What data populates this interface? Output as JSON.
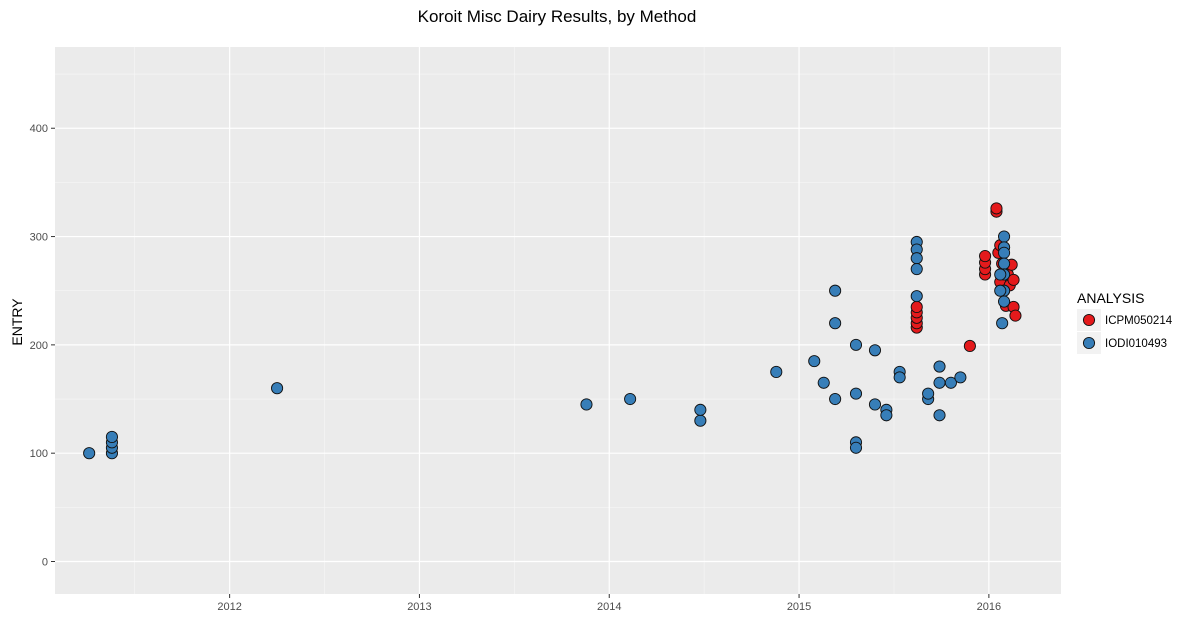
{
  "chart_data": {
    "type": "scatter",
    "title": "Koroit Misc Dairy Results, by Method",
    "xlabel": "",
    "ylabel": "ENTRY",
    "xlim": [
      2011.08,
      2016.38
    ],
    "ylim": [
      -30,
      475
    ],
    "x_ticks": [
      {
        "label": "2012",
        "value": 2012.0
      },
      {
        "label": "2013",
        "value": 2013.0
      },
      {
        "label": "2014",
        "value": 2014.0
      },
      {
        "label": "2015",
        "value": 2015.0
      },
      {
        "label": "2016",
        "value": 2016.0
      }
    ],
    "y_ticks": [
      {
        "label": "0",
        "value": 0
      },
      {
        "label": "100",
        "value": 100
      },
      {
        "label": "200",
        "value": 200
      },
      {
        "label": "300",
        "value": 300
      },
      {
        "label": "400",
        "value": 400
      }
    ],
    "grid": true,
    "legend_title": "ANALYSIS",
    "legend_position": "right",
    "series": [
      {
        "name": "ICPM050214",
        "color": "#e41a1c",
        "points": [
          {
            "x": 2015.62,
            "y": 216
          },
          {
            "x": 2015.62,
            "y": 220
          },
          {
            "x": 2015.62,
            "y": 225
          },
          {
            "x": 2015.62,
            "y": 230
          },
          {
            "x": 2015.62,
            "y": 235
          },
          {
            "x": 2015.9,
            "y": 199
          },
          {
            "x": 2015.98,
            "y": 265
          },
          {
            "x": 2015.98,
            "y": 270
          },
          {
            "x": 2015.98,
            "y": 276
          },
          {
            "x": 2015.98,
            "y": 282
          },
          {
            "x": 2016.04,
            "y": 323
          },
          {
            "x": 2016.04,
            "y": 326
          },
          {
            "x": 2016.05,
            "y": 285
          },
          {
            "x": 2016.06,
            "y": 292
          },
          {
            "x": 2016.06,
            "y": 258
          },
          {
            "x": 2016.07,
            "y": 275
          },
          {
            "x": 2016.08,
            "y": 290
          },
          {
            "x": 2016.08,
            "y": 250
          },
          {
            "x": 2016.09,
            "y": 236
          },
          {
            "x": 2016.1,
            "y": 265
          },
          {
            "x": 2016.11,
            "y": 255
          },
          {
            "x": 2016.12,
            "y": 274
          },
          {
            "x": 2016.13,
            "y": 260
          },
          {
            "x": 2016.13,
            "y": 235
          },
          {
            "x": 2016.14,
            "y": 227
          }
        ]
      },
      {
        "name": "IODI010493",
        "color": "#377eb8",
        "points": [
          {
            "x": 2011.26,
            "y": 100
          },
          {
            "x": 2011.38,
            "y": 100
          },
          {
            "x": 2011.38,
            "y": 105
          },
          {
            "x": 2011.38,
            "y": 110
          },
          {
            "x": 2011.38,
            "y": 115
          },
          {
            "x": 2012.25,
            "y": 160
          },
          {
            "x": 2013.88,
            "y": 145
          },
          {
            "x": 2014.11,
            "y": 150
          },
          {
            "x": 2014.48,
            "y": 130
          },
          {
            "x": 2014.48,
            "y": 140
          },
          {
            "x": 2014.88,
            "y": 175
          },
          {
            "x": 2015.08,
            "y": 185
          },
          {
            "x": 2015.13,
            "y": 165
          },
          {
            "x": 2015.19,
            "y": 250
          },
          {
            "x": 2015.19,
            "y": 220
          },
          {
            "x": 2015.19,
            "y": 150
          },
          {
            "x": 2015.3,
            "y": 200
          },
          {
            "x": 2015.3,
            "y": 155
          },
          {
            "x": 2015.3,
            "y": 110
          },
          {
            "x": 2015.3,
            "y": 105
          },
          {
            "x": 2015.4,
            "y": 195
          },
          {
            "x": 2015.4,
            "y": 145
          },
          {
            "x": 2015.46,
            "y": 140
          },
          {
            "x": 2015.46,
            "y": 135
          },
          {
            "x": 2015.53,
            "y": 175
          },
          {
            "x": 2015.53,
            "y": 170
          },
          {
            "x": 2015.62,
            "y": 295
          },
          {
            "x": 2015.62,
            "y": 288
          },
          {
            "x": 2015.62,
            "y": 280
          },
          {
            "x": 2015.62,
            "y": 270
          },
          {
            "x": 2015.62,
            "y": 245
          },
          {
            "x": 2015.68,
            "y": 150
          },
          {
            "x": 2015.68,
            "y": 155
          },
          {
            "x": 2015.74,
            "y": 180
          },
          {
            "x": 2015.74,
            "y": 165
          },
          {
            "x": 2015.74,
            "y": 135
          },
          {
            "x": 2015.8,
            "y": 165
          },
          {
            "x": 2015.85,
            "y": 170
          },
          {
            "x": 2016.08,
            "y": 300
          },
          {
            "x": 2016.08,
            "y": 290
          },
          {
            "x": 2016.08,
            "y": 285
          },
          {
            "x": 2016.08,
            "y": 275
          },
          {
            "x": 2016.08,
            "y": 265
          },
          {
            "x": 2016.08,
            "y": 250
          },
          {
            "x": 2016.08,
            "y": 240
          },
          {
            "x": 2016.07,
            "y": 220
          },
          {
            "x": 2016.06,
            "y": 265
          },
          {
            "x": 2016.06,
            "y": 250
          }
        ]
      }
    ]
  }
}
